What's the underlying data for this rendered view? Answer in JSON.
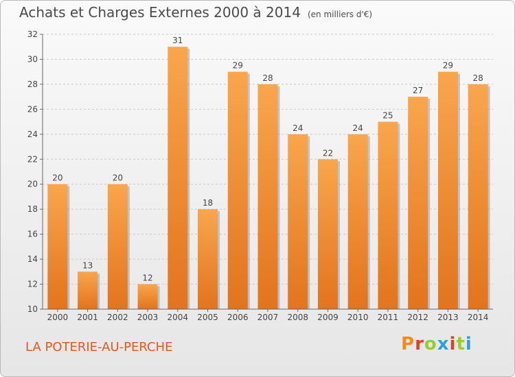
{
  "header": {
    "title": "Achats et Charges Externes 2000 à 2014",
    "unit": "(en milliers d'€)"
  },
  "footer": {
    "place": "LA POTERIE-AU-PERCHE",
    "logo": "Proxiti",
    "logo_colors": [
      "#f08c1a",
      "#e23c2a",
      "#9acd32",
      "#29a3dd",
      "#e23c2a",
      "#9acd32",
      "#29a3dd"
    ]
  },
  "colors": {
    "bar_top": "#f9a64d",
    "bar_bottom": "#e2741c",
    "bar_shadow": "#8a8a8a",
    "title": "#4a4a4a",
    "place": "#e05a20"
  },
  "chart_data": {
    "type": "bar",
    "categories": [
      "2000",
      "2001",
      "2002",
      "2003",
      "2004",
      "2005",
      "2006",
      "2007",
      "2008",
      "2009",
      "2010",
      "2011",
      "2012",
      "2013",
      "2014"
    ],
    "values": [
      20,
      13,
      20,
      12,
      31,
      18,
      29,
      28,
      24,
      22,
      24,
      25,
      27,
      29,
      28
    ],
    "data_labels": [
      "20",
      "13",
      "20",
      "12",
      "31",
      "18",
      "29",
      "28",
      "24",
      "22",
      "24",
      "25",
      "27",
      "29",
      "28"
    ],
    "yticks": [
      10,
      12,
      14,
      16,
      18,
      20,
      22,
      24,
      26,
      28,
      30,
      32
    ],
    "ylim": [
      10,
      32
    ],
    "grid": "horizontal dashed"
  }
}
